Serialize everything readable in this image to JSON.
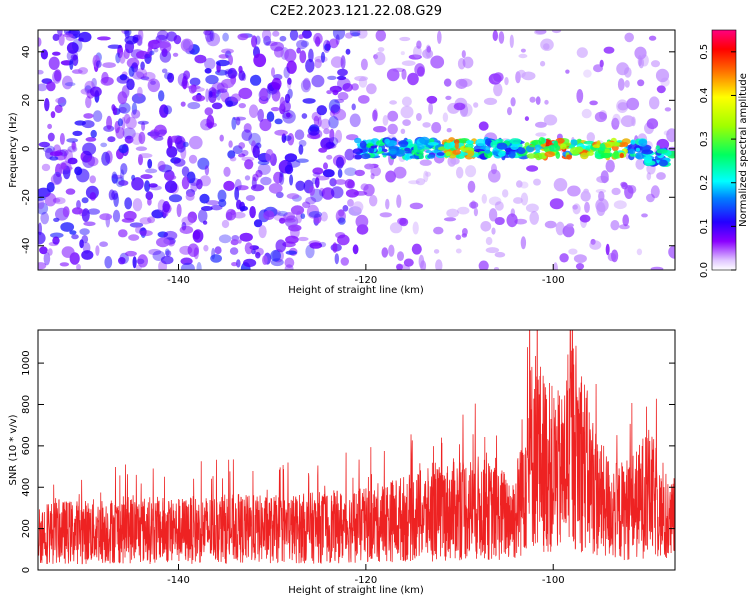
{
  "title": "C2E2.2023.121.22.08.G29",
  "colors": {
    "snr_line": "#ee2222",
    "axis": "#000000"
  },
  "chart_data": [
    {
      "type": "heatmap",
      "xlabel": "Height of straight line (km)",
      "ylabel": "Frequency (Hz)",
      "xlim": [
        -155,
        -87
      ],
      "ylim": [
        -50,
        49
      ],
      "x_ticks": [
        -140,
        -120,
        -100
      ],
      "y_ticks": [
        -40,
        -20,
        0,
        20,
        40
      ],
      "colorscale": "hsv rainbow (white at 0, violet, blue, cyan, green, yellow, red, magenta)",
      "signal_frequency_hz": 0,
      "signal_x_range": [
        -121,
        -87
      ],
      "noise_x_range": [
        -155,
        -121
      ],
      "colorbar": {
        "label": "Normalized spectral amplitude",
        "range": [
          0,
          0.55
        ],
        "ticks": [
          0.0,
          0.1,
          0.2,
          0.3,
          0.4,
          0.5
        ]
      }
    },
    {
      "type": "line",
      "xlabel": "Height of straight line (km)",
      "ylabel": "SNR (10 * v/v)",
      "xlim": [
        -155,
        -87
      ],
      "ylim": [
        0,
        1160
      ],
      "x_ticks": [
        -140,
        -120,
        -100
      ],
      "y_ticks": [
        0,
        200,
        400,
        600,
        800,
        1000
      ],
      "series": [
        {
          "x": [
            -155,
            -150,
            -145,
            -140,
            -135,
            -130,
            -125,
            -120,
            -118,
            -115,
            -112,
            -110,
            -108,
            -106,
            -104,
            -103,
            -102,
            -101,
            -100,
            -99,
            -98,
            -97,
            -96,
            -95,
            -94,
            -93,
            -92,
            -91,
            -90,
            -89,
            -88,
            -87
          ],
          "values": [
            180,
            185,
            195,
            190,
            200,
            195,
            205,
            215,
            235,
            255,
            275,
            300,
            300,
            270,
            260,
            480,
            600,
            520,
            480,
            460,
            640,
            560,
            420,
            340,
            300,
            280,
            300,
            320,
            380,
            330,
            200,
            250
          ]
        }
      ]
    }
  ]
}
